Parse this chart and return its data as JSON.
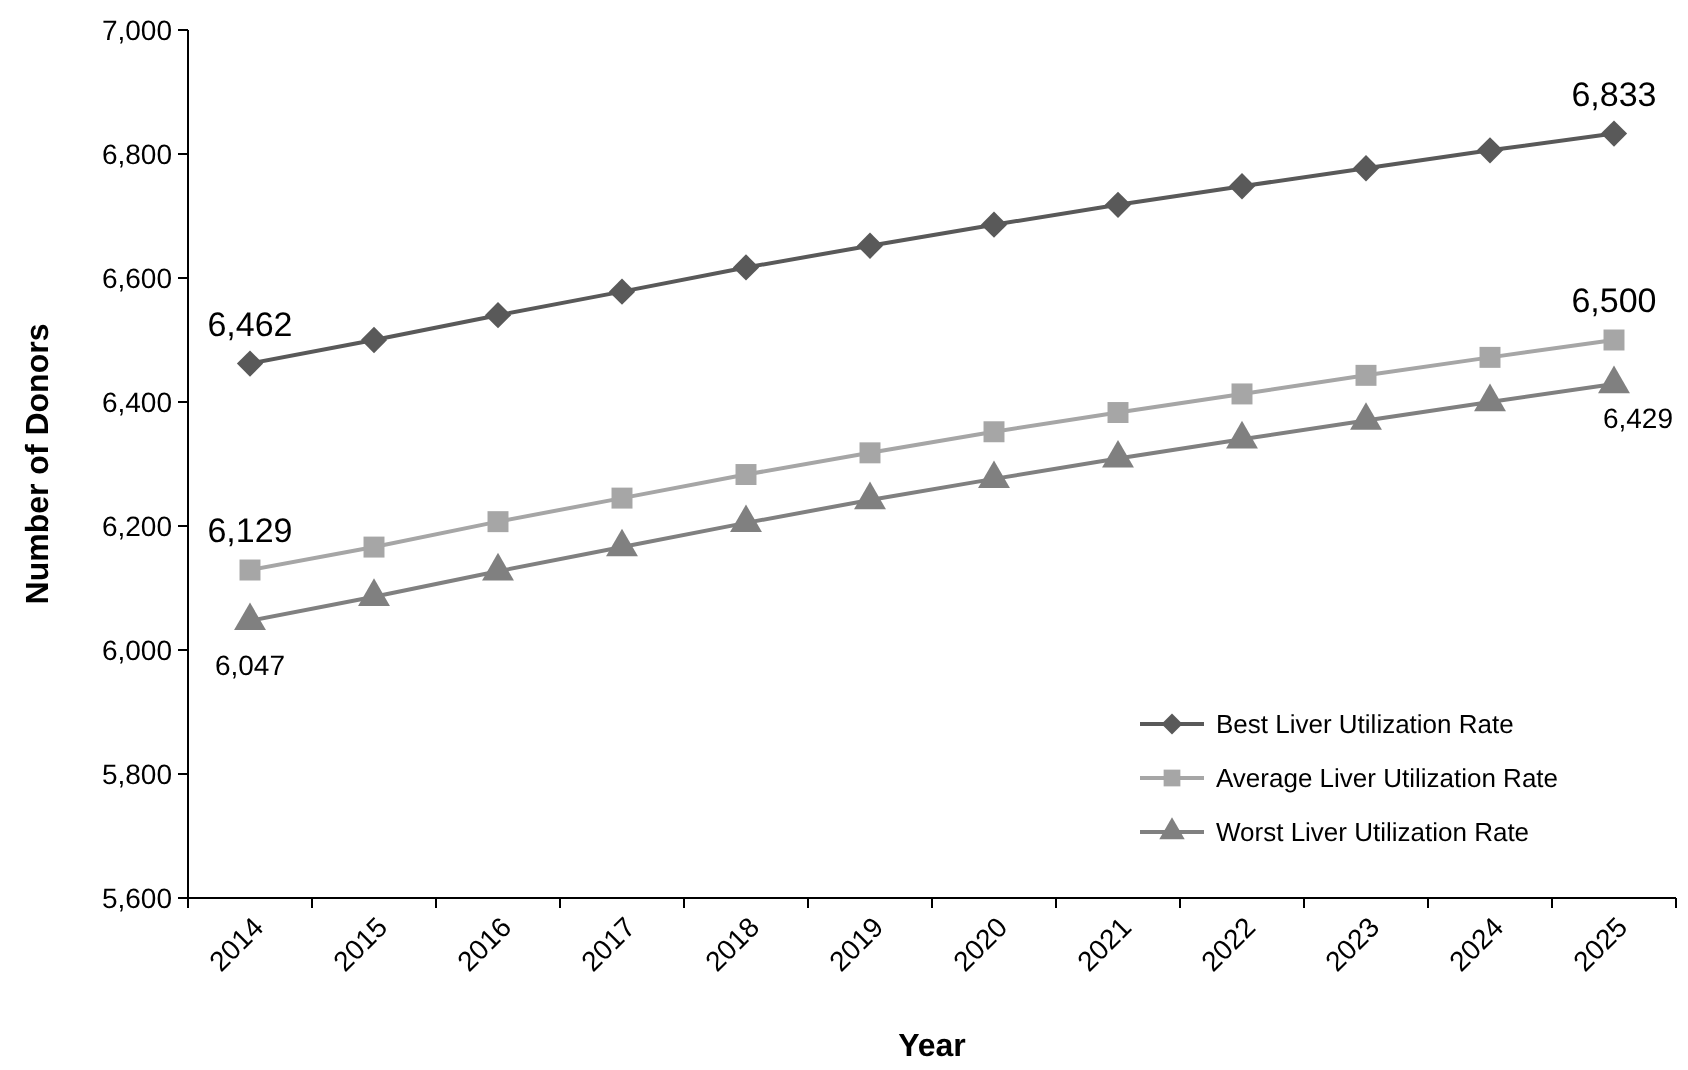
{
  "chart_data": {
    "type": "line",
    "xlabel": "Year",
    "ylabel": "Number of Donors",
    "categories": [
      "2014",
      "2015",
      "2016",
      "2017",
      "2018",
      "2019",
      "2020",
      "2021",
      "2022",
      "2023",
      "2024",
      "2025"
    ],
    "series": [
      {
        "name": "Best Liver Utilization Rate",
        "color": "#595959",
        "marker": "diamond",
        "values": [
          6462,
          6500,
          6540,
          6578,
          6617,
          6652,
          6686,
          6718,
          6748,
          6777,
          6806,
          6833
        ],
        "value_labels": [
          "6,462",
          null,
          null,
          null,
          null,
          null,
          null,
          null,
          null,
          null,
          null,
          "6,833"
        ]
      },
      {
        "name": "Average Liver Utilization Rate",
        "color": "#a6a6a6",
        "marker": "square",
        "values": [
          6129,
          6166,
          6207,
          6245,
          6283,
          6318,
          6352,
          6383,
          6413,
          6443,
          6472,
          6500
        ],
        "value_labels": [
          "6,129",
          null,
          null,
          null,
          null,
          null,
          null,
          null,
          null,
          null,
          null,
          "6,500"
        ]
      },
      {
        "name": "Worst Liver Utilization Rate",
        "color": "#808080",
        "marker": "triangle",
        "values": [
          6047,
          6086,
          6127,
          6166,
          6205,
          6242,
          6276,
          6309,
          6340,
          6370,
          6400,
          6429
        ],
        "value_labels": [
          "6,047",
          null,
          null,
          null,
          null,
          null,
          null,
          null,
          null,
          null,
          null,
          "6,429"
        ]
      }
    ],
    "ylim": [
      5600,
      7000
    ],
    "yticks": [
      {
        "value": 5600,
        "label": "5,600"
      },
      {
        "value": 5800,
        "label": "5,800"
      },
      {
        "value": 6000,
        "label": "6,000"
      },
      {
        "value": 6200,
        "label": "6,200"
      },
      {
        "value": 6400,
        "label": "6,400"
      },
      {
        "value": 6600,
        "label": "6,600"
      },
      {
        "value": 6800,
        "label": "6,800"
      },
      {
        "value": 7000,
        "label": "7,000"
      }
    ],
    "legend": "bottom right",
    "grid": false
  }
}
